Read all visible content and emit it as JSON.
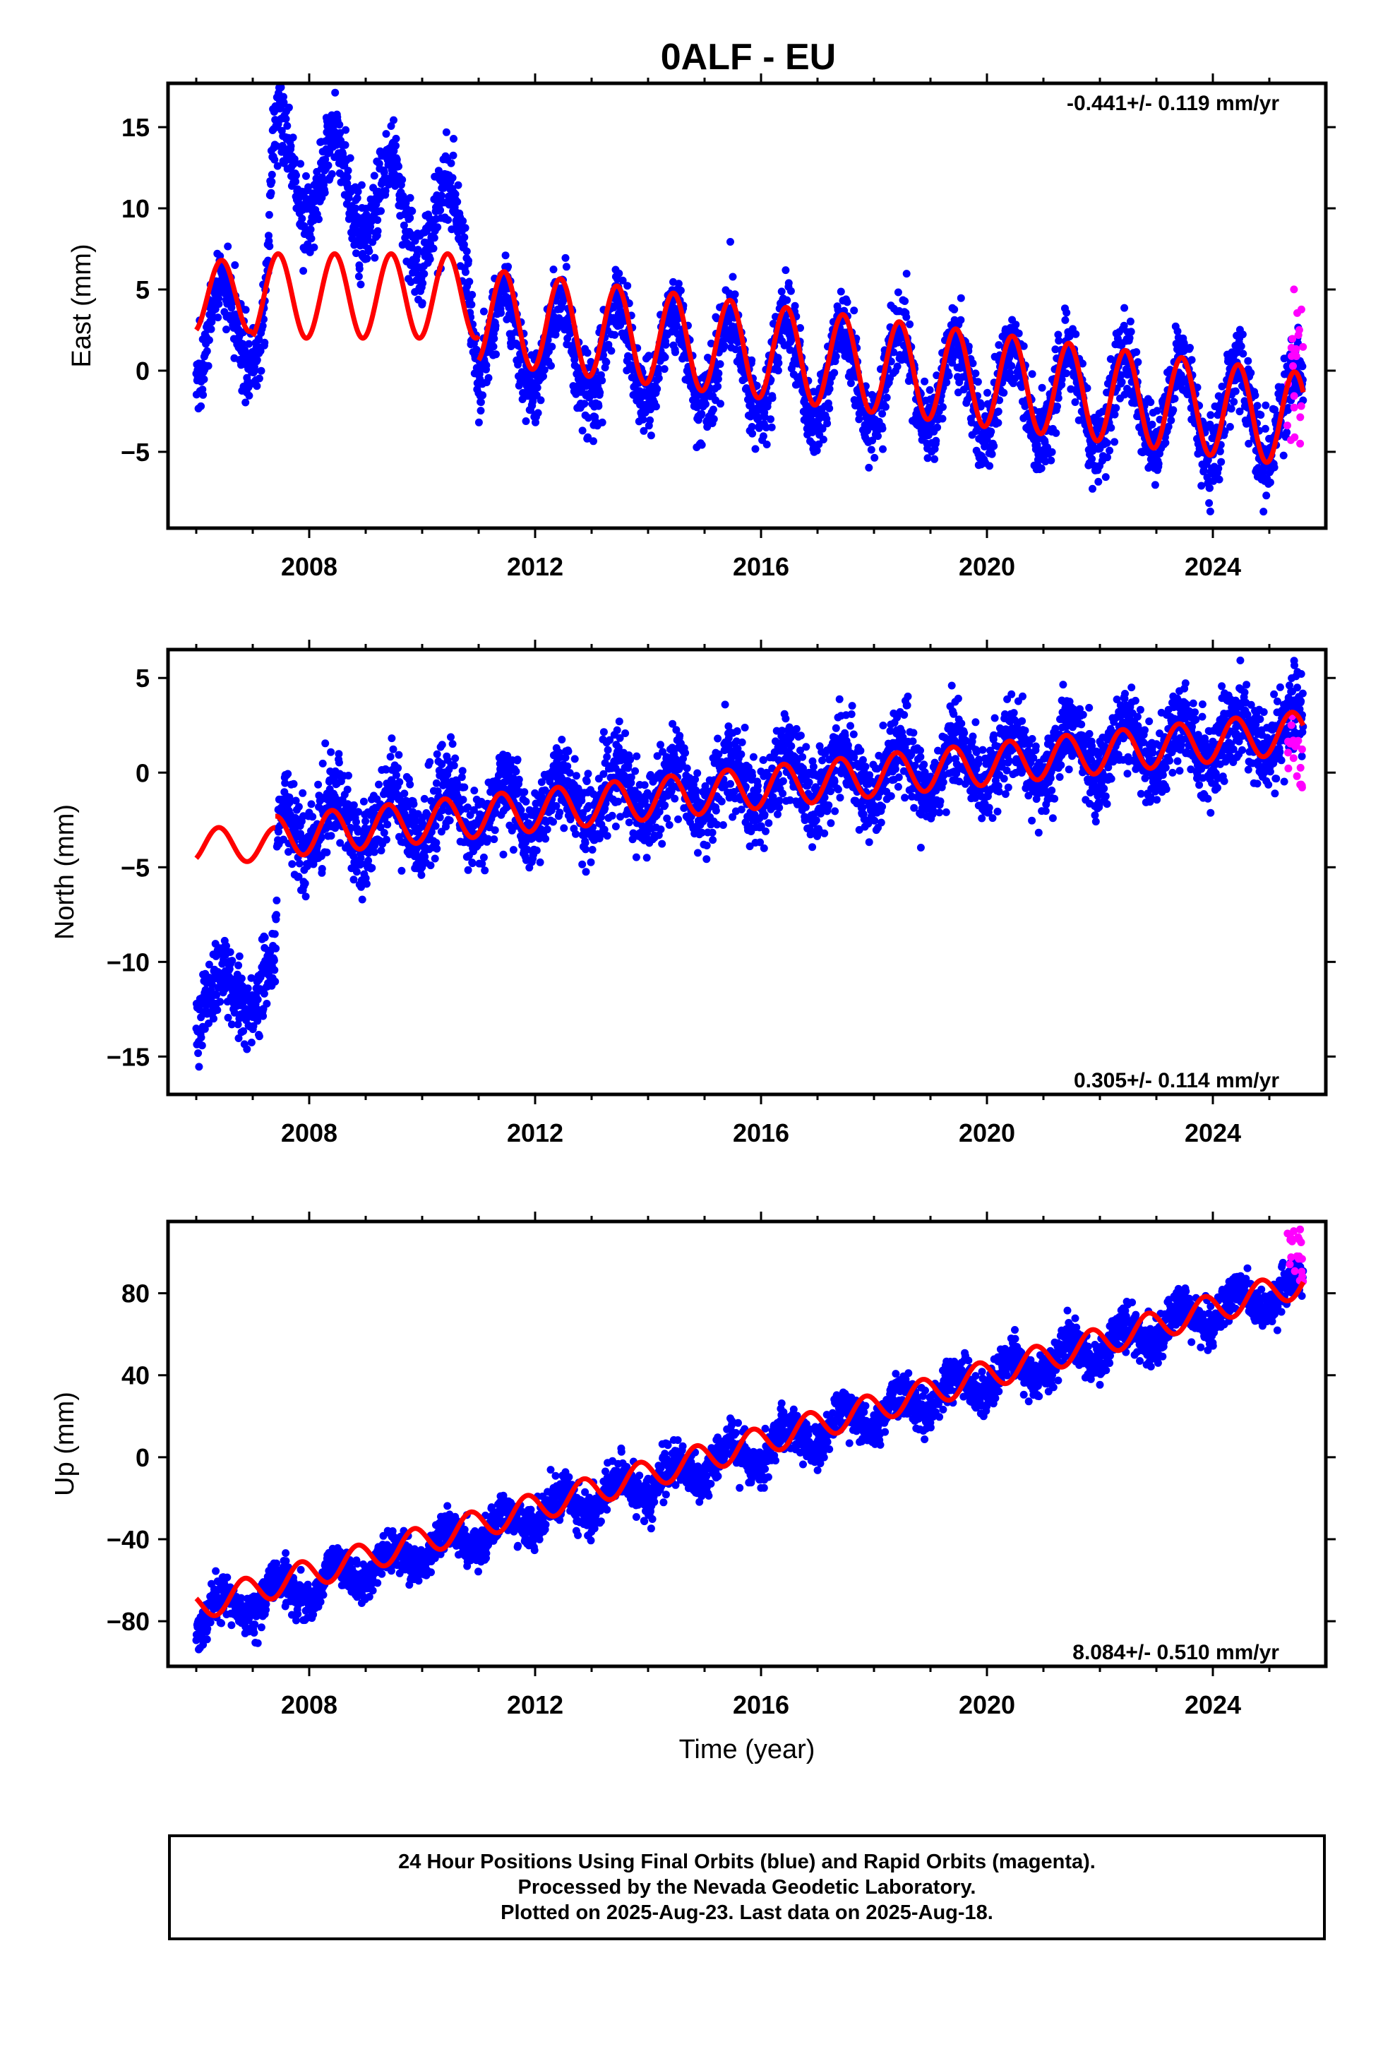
{
  "title": "0ALF - EU",
  "colors": {
    "final": "#0000ff",
    "rapid": "#ff00ff",
    "model": "#ff0000"
  },
  "chart_data": [
    {
      "type": "scatter",
      "component": "East",
      "ylabel": "East (mm)",
      "xlabel": "",
      "rate": "-0.441+/- 0.119 mm/yr",
      "rate_position": "top-right",
      "xlim": [
        2005.5,
        2026.0
      ],
      "ylim": [
        -9.7,
        17.7
      ],
      "yticks": [
        -5,
        0,
        5,
        10,
        15
      ],
      "ytick_labels": [
        "−5",
        "0",
        "5",
        "10",
        "15"
      ],
      "xticks": [
        2008,
        2012,
        2016,
        2020,
        2024
      ],
      "xtick_labels": [
        "2008",
        "2012",
        "2016",
        "2020",
        "2024"
      ],
      "model": {
        "segments": [
          [
            2006.0,
            2007.0,
            4.6,
            0.0,
            2.2,
            0.2
          ],
          [
            2007.0,
            2011.0,
            4.6,
            0.0,
            2.6,
            0.2
          ],
          [
            2011.0,
            2025.6,
            3.4,
            -0.441,
            2.9,
            0.2
          ]
        ]
      },
      "final_trend": [
        [
          2006.0,
          2.0
        ],
        [
          2007.2,
          3.2
        ],
        [
          2007.4,
          13.0
        ],
        [
          2010.8,
          8.0
        ],
        [
          2011.0,
          2.0
        ],
        [
          2025.6,
          -3.0
        ]
      ],
      "final_amp": 3.0,
      "final_noise": 1.2,
      "rapid": {
        "x_range": [
          2025.3,
          2025.6
        ],
        "y_range": [
          -5.5,
          5.5
        ],
        "count": 22
      }
    },
    {
      "type": "scatter",
      "component": "North",
      "ylabel": "North (mm)",
      "xlabel": "",
      "rate": "0.305+/- 0.114 mm/yr",
      "rate_position": "bottom-right",
      "xlim": [
        2005.5,
        2026.0
      ],
      "ylim": [
        -17.0,
        6.5
      ],
      "yticks": [
        -15,
        -10,
        -5,
        0,
        5
      ],
      "ytick_labels": [
        "−15",
        "−10",
        "−5",
        "0",
        "5"
      ],
      "xticks": [
        2008,
        2012,
        2016,
        2020,
        2024
      ],
      "xtick_labels": [
        "2008",
        "2012",
        "2016",
        "2020",
        "2024"
      ],
      "model": {
        "segments": [
          [
            2006.0,
            2007.4,
            -3.8,
            0.0,
            0.9,
            0.15
          ],
          [
            2007.4,
            2025.6,
            -3.4,
            0.305,
            1.1,
            0.15
          ]
        ]
      },
      "final_trend": [
        [
          2006.0,
          -12.2
        ],
        [
          2007.4,
          -11.0
        ],
        [
          2007.45,
          -3.0
        ],
        [
          2025.6,
          2.2
        ]
      ],
      "final_amp": 1.3,
      "final_noise": 1.1,
      "rapid": {
        "x_range": [
          2025.3,
          2025.6
        ],
        "y_range": [
          -1.0,
          3.0
        ],
        "count": 20
      }
    },
    {
      "type": "scatter",
      "component": "Up",
      "ylabel": "Up (mm)",
      "xlabel": "Time (year)",
      "rate": "8.084+/- 0.510 mm/yr",
      "rate_position": "bottom-right",
      "xlim": [
        2005.5,
        2026.0
      ],
      "ylim": [
        -102,
        115
      ],
      "yticks": [
        -80,
        -40,
        0,
        40,
        80
      ],
      "ytick_labels": [
        "−80",
        "−40",
        "0",
        "40",
        "80"
      ],
      "xticks": [
        2008,
        2012,
        2016,
        2020,
        2024
      ],
      "xtick_labels": [
        "2008",
        "2012",
        "2016",
        "2020",
        "2024"
      ],
      "model": {
        "segments": [
          [
            2006.0,
            2025.6,
            -73,
            8.084,
            7.0,
            0.6
          ]
        ]
      },
      "final_trend": [
        [
          2006.0,
          -79
        ],
        [
          2025.6,
          84
        ]
      ],
      "final_amp": 7.5,
      "final_noise": 5.0,
      "rapid": {
        "x_range": [
          2025.3,
          2025.6
        ],
        "y_range": [
          85,
          112
        ],
        "count": 20
      }
    }
  ],
  "caption": {
    "line1": "24 Hour Positions Using Final Orbits (blue) and Rapid Orbits (magenta).",
    "line2": "Processed by the Nevada Geodetic Laboratory.",
    "line3": "Plotted on 2025-Aug-23. Last data on 2025-Aug-18."
  }
}
